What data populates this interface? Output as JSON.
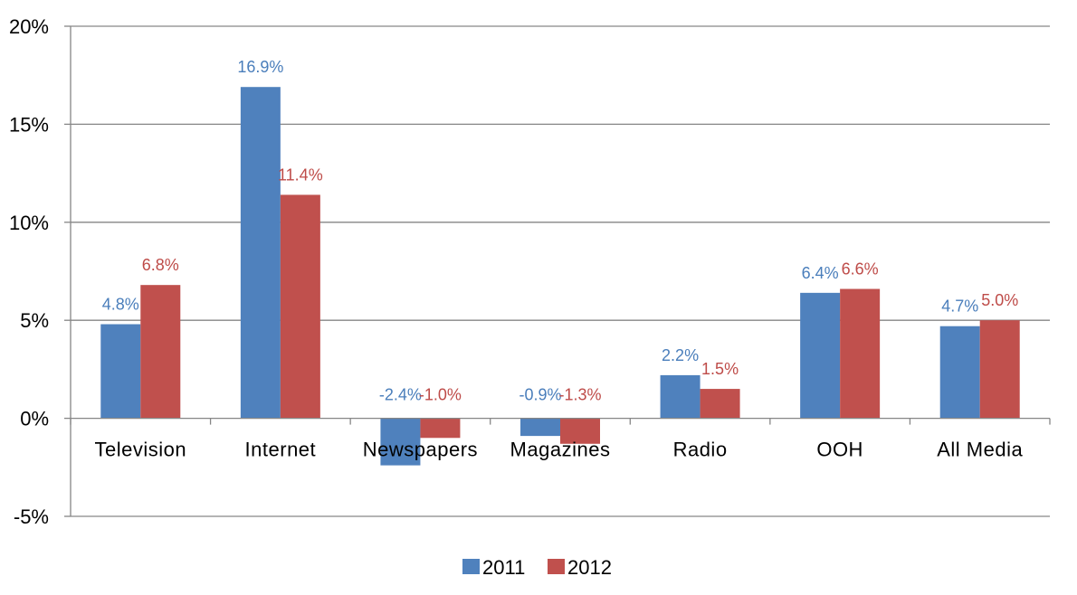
{
  "chart_data": {
    "type": "bar",
    "categories": [
      "Television",
      "Internet",
      "Newspapers",
      "Magazines",
      "Radio",
      "OOH",
      "All Media"
    ],
    "series": [
      {
        "name": "2011",
        "values": [
          4.8,
          16.9,
          -2.4,
          -0.9,
          2.2,
          6.4,
          4.7
        ],
        "labels": [
          "4.8%",
          "16.9%",
          "-2.4%",
          "-0.9%",
          "2.2%",
          "6.4%",
          "4.7%"
        ],
        "color": "#4F81BD",
        "label_color": "#4A7EBB"
      },
      {
        "name": "2012",
        "values": [
          6.8,
          11.4,
          -1.0,
          -1.3,
          1.5,
          6.6,
          5.0
        ],
        "labels": [
          "6.8%",
          "11.4%",
          "-1.0%",
          "-1.3%",
          "1.5%",
          "6.6%",
          "5.0%"
        ],
        "color": "#C0504D",
        "label_color": "#BE4B48"
      }
    ],
    "ylim": [
      -5,
      20
    ],
    "yticks": [
      20,
      15,
      10,
      5,
      0,
      -5
    ],
    "ytick_labels": [
      "20%",
      "15%",
      "10%",
      "5%",
      "0%",
      "-5%"
    ],
    "grid": true,
    "legend_position": "bottom"
  }
}
